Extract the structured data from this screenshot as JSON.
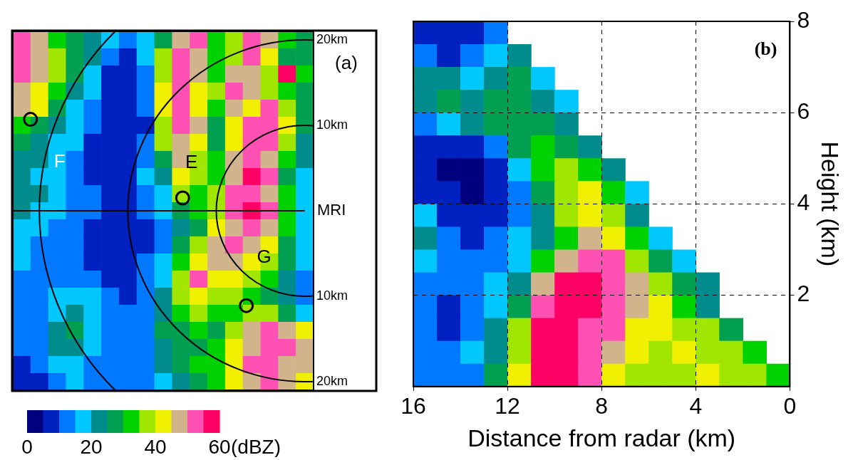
{
  "chart_data": [
    {
      "type": "heatmap",
      "label": "(a)",
      "xlim": [
        -33,
        1
      ],
      "ylim": [
        -21,
        21
      ],
      "tick_labels": false,
      "grid": false,
      "x": [
        -32,
        -30,
        -28,
        -26,
        -24,
        -22,
        -20,
        -18,
        -16,
        -14,
        -12,
        -10,
        -8,
        -6,
        -4,
        -2,
        0
      ],
      "y": [
        20,
        18,
        16,
        14,
        12,
        10,
        8,
        6,
        4,
        2,
        0,
        -2,
        -4,
        -6,
        -8,
        -10,
        -12,
        -14,
        -16,
        -18,
        -20
      ],
      "cells": [
        [
          50,
          45,
          30,
          25,
          22,
          15,
          10,
          18,
          28,
          45,
          50,
          30,
          35,
          50,
          45,
          30,
          25
        ],
        [
          52,
          48,
          35,
          28,
          20,
          10,
          8,
          15,
          35,
          50,
          45,
          30,
          38,
          50,
          40,
          28,
          25
        ],
        [
          50,
          45,
          38,
          25,
          18,
          8,
          8,
          12,
          38,
          52,
          45,
          32,
          45,
          48,
          35,
          55,
          30
        ],
        [
          48,
          42,
          30,
          22,
          15,
          8,
          6,
          10,
          40,
          50,
          42,
          35,
          50,
          45,
          35,
          30,
          25
        ],
        [
          45,
          40,
          25,
          18,
          12,
          6,
          5,
          10,
          42,
          52,
          40,
          30,
          45,
          40,
          50,
          35,
          25
        ],
        [
          30,
          28,
          22,
          15,
          10,
          5,
          5,
          8,
          38,
          50,
          45,
          28,
          40,
          50,
          52,
          40,
          25
        ],
        [
          25,
          22,
          18,
          15,
          8,
          5,
          5,
          10,
          35,
          48,
          40,
          25,
          42,
          52,
          50,
          35,
          20
        ],
        [
          22,
          20,
          15,
          12,
          8,
          5,
          6,
          12,
          28,
          45,
          38,
          30,
          45,
          52,
          48,
          30,
          20
        ],
        [
          20,
          18,
          15,
          10,
          8,
          5,
          8,
          15,
          22,
          40,
          35,
          32,
          48,
          55,
          50,
          28,
          18
        ],
        [
          22,
          20,
          18,
          12,
          10,
          6,
          8,
          12,
          18,
          35,
          30,
          35,
          50,
          52,
          48,
          30,
          18
        ],
        [
          20,
          18,
          15,
          12,
          10,
          8,
          8,
          10,
          15,
          25,
          30,
          38,
          50,
          55,
          50,
          32,
          18
        ],
        [
          18,
          15,
          12,
          10,
          8,
          8,
          6,
          8,
          10,
          20,
          28,
          40,
          48,
          52,
          45,
          30,
          15
        ],
        [
          15,
          12,
          10,
          10,
          8,
          6,
          6,
          8,
          12,
          28,
          35,
          45,
          50,
          48,
          40,
          28,
          15
        ],
        [
          15,
          12,
          12,
          10,
          8,
          8,
          8,
          10,
          15,
          32,
          40,
          48,
          45,
          40,
          38,
          25,
          15
        ],
        [
          12,
          10,
          12,
          12,
          10,
          8,
          8,
          10,
          18,
          38,
          50,
          42,
          40,
          35,
          30,
          22,
          12
        ],
        [
          12,
          12,
          15,
          18,
          15,
          10,
          8,
          10,
          20,
          35,
          42,
          38,
          35,
          30,
          28,
          20,
          12
        ],
        [
          10,
          12,
          18,
          22,
          18,
          12,
          10,
          12,
          22,
          30,
          35,
          30,
          32,
          38,
          35,
          25,
          15
        ],
        [
          10,
          12,
          22,
          25,
          15,
          12,
          10,
          12,
          25,
          28,
          30,
          28,
          38,
          45,
          50,
          48,
          40
        ],
        [
          10,
          10,
          20,
          22,
          15,
          12,
          10,
          12,
          22,
          25,
          28,
          30,
          40,
          48,
          52,
          50,
          45
        ],
        [
          8,
          10,
          15,
          18,
          12,
          10,
          10,
          12,
          20,
          25,
          30,
          32,
          42,
          50,
          50,
          48,
          45
        ],
        [
          8,
          8,
          12,
          15,
          12,
          10,
          10,
          10,
          18,
          22,
          28,
          30,
          40,
          48,
          50,
          45,
          40
        ]
      ],
      "rings": [
        {
          "radius": 10,
          "label": "10km"
        },
        {
          "radius": 20,
          "label": "20km"
        },
        {
          "radius": 30
        }
      ],
      "origin_label": "MRI",
      "markers": [
        {
          "x": -31,
          "y": 10.7,
          "marker": "circle"
        },
        {
          "x": -13.8,
          "y": 1.5,
          "marker": "circle"
        },
        {
          "x": -6.6,
          "y": -11.1,
          "marker": "circle"
        }
      ],
      "annotations": [
        {
          "text": "F",
          "x": -27.7,
          "y": 5.7,
          "color": "#ffffff"
        },
        {
          "text": "E",
          "x": -12.8,
          "y": 5.6,
          "color": "#000000"
        },
        {
          "text": "G",
          "x": -4.6,
          "y": -5.5,
          "color": "#000000"
        }
      ]
    },
    {
      "type": "heatmap",
      "label": "(b)",
      "xlim": [
        16,
        0
      ],
      "ylim": [
        0,
        8
      ],
      "xticks": [
        0,
        4,
        8,
        12,
        16
      ],
      "yticks": [
        2,
        4,
        6,
        8
      ],
      "grid": true,
      "xlabel": "Distance from radar (km)",
      "ylabel": "Height (km)",
      "x": [
        15.5,
        14.5,
        13.5,
        12.5,
        11.5,
        10.5,
        9.5,
        8.5,
        7.5,
        6.5,
        5.5,
        4.5,
        3.5,
        2.5,
        1.5,
        0.5
      ],
      "y": [
        7.75,
        7.25,
        6.75,
        6.25,
        5.75,
        5.25,
        4.75,
        4.25,
        3.75,
        3.25,
        2.75,
        2.25,
        1.75,
        1.25,
        0.75,
        0.25
      ],
      "cells": [
        [
          6,
          6,
          8,
          12,
          null,
          null,
          null,
          null,
          null,
          null,
          null,
          null,
          null,
          null,
          null,
          null
        ],
        [
          10,
          8,
          12,
          18,
          20,
          null,
          null,
          null,
          null,
          null,
          null,
          null,
          null,
          null,
          null,
          null
        ],
        [
          20,
          22,
          18,
          20,
          25,
          18,
          null,
          null,
          null,
          null,
          null,
          null,
          null,
          null,
          null,
          null
        ],
        [
          22,
          25,
          22,
          25,
          28,
          22,
          18,
          null,
          null,
          null,
          null,
          null,
          null,
          null,
          null,
          null
        ],
        [
          10,
          15,
          20,
          25,
          28,
          25,
          20,
          null,
          null,
          null,
          null,
          null,
          null,
          null,
          null,
          null
        ],
        [
          5,
          5,
          8,
          12,
          28,
          30,
          28,
          20,
          null,
          null,
          null,
          null,
          null,
          null,
          null,
          null
        ],
        [
          5,
          3,
          3,
          5,
          15,
          30,
          35,
          30,
          20,
          null,
          null,
          null,
          null,
          null,
          null,
          null
        ],
        [
          8,
          5,
          3,
          5,
          10,
          28,
          38,
          40,
          30,
          18,
          null,
          null,
          null,
          null,
          null,
          null
        ],
        [
          15,
          8,
          5,
          8,
          12,
          22,
          35,
          40,
          38,
          22,
          null,
          null,
          null,
          null,
          null,
          null
        ],
        [
          22,
          12,
          8,
          10,
          15,
          22,
          30,
          45,
          42,
          30,
          18,
          null,
          null,
          null,
          null,
          null
        ],
        [
          18,
          12,
          10,
          12,
          15,
          30,
          45,
          50,
          50,
          35,
          25,
          18,
          null,
          null,
          null,
          null
        ],
        [
          12,
          10,
          10,
          15,
          22,
          45,
          55,
          55,
          50,
          45,
          35,
          28,
          20,
          null,
          null,
          null
        ],
        [
          10,
          8,
          12,
          18,
          28,
          52,
          58,
          55,
          50,
          45,
          40,
          30,
          22,
          null,
          null,
          null
        ],
        [
          10,
          8,
          12,
          20,
          35,
          58,
          58,
          52,
          50,
          42,
          40,
          38,
          35,
          28,
          null,
          null
        ],
        [
          12,
          10,
          15,
          22,
          38,
          58,
          55,
          50,
          45,
          40,
          38,
          40,
          38,
          35,
          30,
          null
        ],
        [
          12,
          10,
          12,
          25,
          42,
          58,
          55,
          50,
          42,
          38,
          35,
          38,
          40,
          38,
          35,
          30
        ]
      ]
    }
  ],
  "colorbar": {
    "range": [
      0,
      60
    ],
    "ticks": [
      0,
      20,
      40,
      60
    ],
    "label": "(dBZ)",
    "bounds": [
      0,
      5,
      10,
      15,
      20,
      25,
      30,
      35,
      40,
      45,
      50,
      55,
      60
    ],
    "colors": [
      "#00007f",
      "#0020c0",
      "#0078ff",
      "#00c8ff",
      "#008c8c",
      "#00a050",
      "#00d200",
      "#a0e600",
      "#f0f000",
      "#d2b48c",
      "#ff50b4",
      "#ff0064"
    ]
  }
}
